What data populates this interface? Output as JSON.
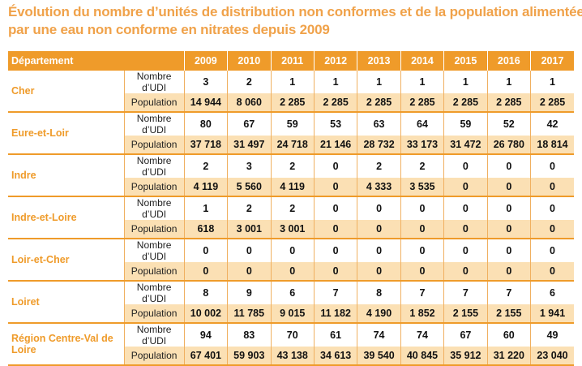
{
  "title": {
    "line1": "Évolution du nombre d’unités de distribution non conformes et de la population alimentée",
    "line2": "par une eau non conforme en nitrates depuis 2009"
  },
  "table": {
    "dept_header": "Département",
    "years": [
      "2009",
      "2010",
      "2011",
      "2012",
      "2013",
      "2014",
      "2015",
      "2016",
      "2017"
    ],
    "row_label_udi": "Nombre d’UDI",
    "row_label_pop": "Population",
    "departments": [
      {
        "name": "Cher",
        "udi": [
          "3",
          "2",
          "1",
          "1",
          "1",
          "1",
          "1",
          "1",
          "1"
        ],
        "pop": [
          "14 944",
          "8 060",
          "2 285",
          "2 285",
          "2 285",
          "2 285",
          "2 285",
          "2 285",
          "2 285"
        ]
      },
      {
        "name": "Eure-et-Loir",
        "udi": [
          "80",
          "67",
          "59",
          "53",
          "63",
          "64",
          "59",
          "52",
          "42"
        ],
        "pop": [
          "37 718",
          "31 497",
          "24 718",
          "21 146",
          "28 732",
          "33 173",
          "31 472",
          "26 780",
          "18 814"
        ]
      },
      {
        "name": "Indre",
        "udi": [
          "2",
          "3",
          "2",
          "0",
          "2",
          "2",
          "0",
          "0",
          "0"
        ],
        "pop": [
          "4 119",
          "5 560",
          "4 119",
          "0",
          "4 333",
          "3 535",
          "0",
          "0",
          "0"
        ]
      },
      {
        "name": "Indre-et-Loire",
        "udi": [
          "1",
          "2",
          "2",
          "0",
          "0",
          "0",
          "0",
          "0",
          "0"
        ],
        "pop": [
          "618",
          "3 001",
          "3 001",
          "0",
          "0",
          "0",
          "0",
          "0",
          "0"
        ]
      },
      {
        "name": "Loir-et-Cher",
        "udi": [
          "0",
          "0",
          "0",
          "0",
          "0",
          "0",
          "0",
          "0",
          "0"
        ],
        "pop": [
          "0",
          "0",
          "0",
          "0",
          "0",
          "0",
          "0",
          "0",
          "0"
        ]
      },
      {
        "name": "Loiret",
        "udi": [
          "8",
          "9",
          "6",
          "7",
          "8",
          "7",
          "7",
          "7",
          "6"
        ],
        "pop": [
          "10 002",
          "11 785",
          "9 015",
          "11 182",
          "4 190",
          "1 852",
          "2 155",
          "2 155",
          "1 941"
        ]
      },
      {
        "name": "Région Centre-Val de Loire",
        "udi": [
          "94",
          "83",
          "70",
          "61",
          "74",
          "74",
          "67",
          "60",
          "49"
        ],
        "pop": [
          "67 401",
          "59 903",
          "43 138",
          "34 613",
          "39 540",
          "40 845",
          "35 912",
          "31 220",
          "23 040"
        ]
      }
    ]
  },
  "colors": {
    "accent": "#ef9b2a",
    "title": "#f0a24a",
    "shade": "#fbe0b4"
  }
}
